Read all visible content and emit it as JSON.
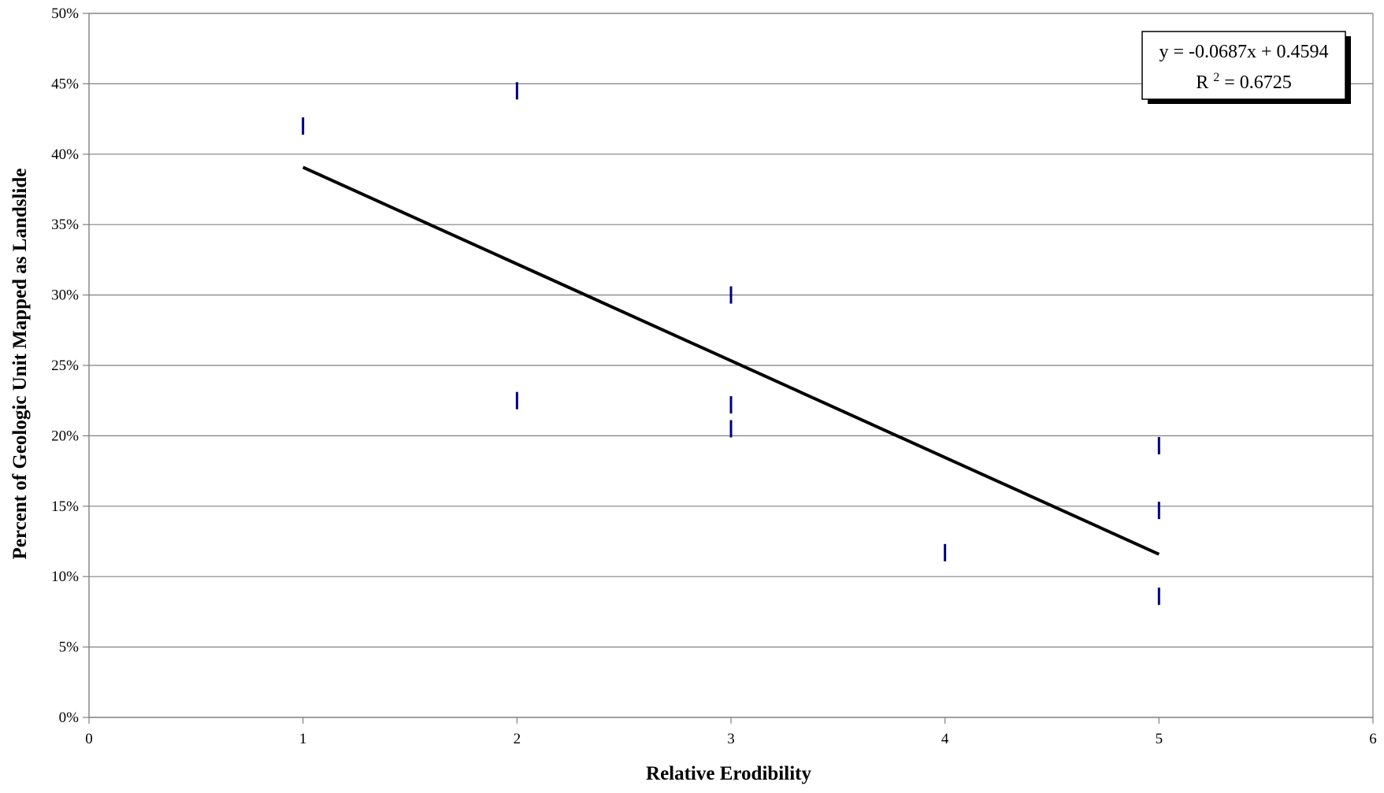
{
  "chart_data": {
    "type": "scatter",
    "title": "",
    "xlabel": "Relative Erodibility",
    "ylabel": "Percent of Geologic Unit Mapped as Landslide",
    "xlim": [
      0,
      6
    ],
    "ylim": [
      0,
      0.5
    ],
    "x_ticks": [
      0,
      1,
      2,
      3,
      4,
      5,
      6
    ],
    "x_tick_labels": [
      "0",
      "1",
      "2",
      "3",
      "4",
      "5",
      "6"
    ],
    "y_ticks": [
      0,
      0.05,
      0.1,
      0.15,
      0.2,
      0.25,
      0.3,
      0.35,
      0.4,
      0.45,
      0.5
    ],
    "y_tick_labels": [
      "0%",
      "5%",
      "10%",
      "15%",
      "20%",
      "25%",
      "30%",
      "35%",
      "40%",
      "45%",
      "50%"
    ],
    "grid": "horizontal",
    "marker_color": "#00007f",
    "trend_color": "#000000",
    "series": [
      {
        "x": [
          1,
          2,
          2,
          3,
          3,
          3,
          4,
          5,
          5,
          5
        ],
        "y": [
          0.42,
          0.445,
          0.225,
          0.3,
          0.222,
          0.205,
          0.117,
          0.193,
          0.147,
          0.086
        ]
      }
    ],
    "trendline": {
      "slope": -0.0687,
      "intercept": 0.4594,
      "x_range": [
        1,
        5
      ]
    },
    "annotation": {
      "equation": "y = -0.0687x + 0.4594",
      "r_squared_prefix": "R",
      "r_squared_exponent": "2",
      "r_squared_value": " = 0.6725",
      "placement": "top-right"
    }
  }
}
